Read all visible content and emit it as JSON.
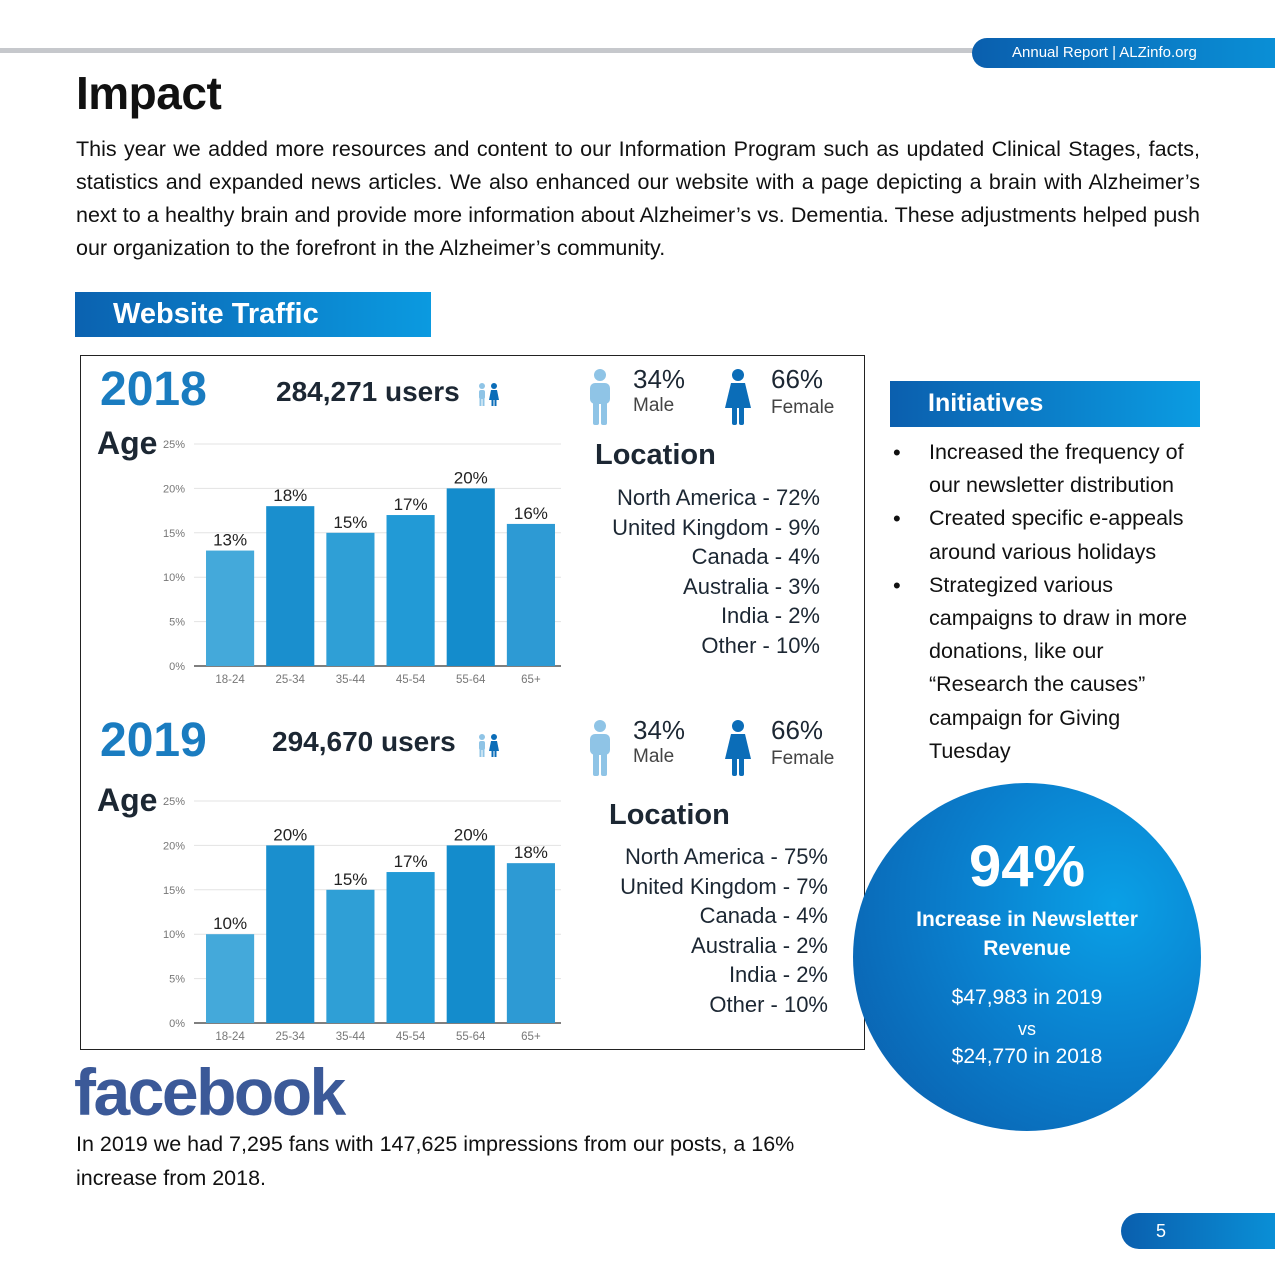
{
  "header": {
    "label": "Annual Report | ALZinfo.org"
  },
  "page_title": "Impact",
  "intro": "This year we added more resources and content to our Information Program such as updated Clinical Stages, facts, statistics and expanded news articles. We also enhanced our website with a page depicting a brain with Alzheimer’s next to a healthy brain and provide more information about Alzheimer’s vs. Dementia. These adjustments helped push our organization to the forefront in the Alzheimer’s community.",
  "website_traffic": {
    "title": "Website Traffic",
    "years": [
      {
        "year": "2018",
        "users": "284,271 users",
        "age_label": "Age",
        "male": {
          "pct": "34%",
          "label": "Male"
        },
        "female": {
          "pct": "66%",
          "label": "Female"
        },
        "location_title": "Location",
        "locations": [
          "North America - 72%",
          "United Kingdom - 9%",
          "Canada - 4%",
          "Australia - 3%",
          "India - 2%",
          "Other - 10%"
        ]
      },
      {
        "year": "2019",
        "users": "294,670 users",
        "age_label": "Age",
        "male": {
          "pct": "34%",
          "label": "Male"
        },
        "female": {
          "pct": "66%",
          "label": "Female"
        },
        "location_title": "Location",
        "locations": [
          "North America - 75%",
          "United Kingdom - 7%",
          "Canada - 4%",
          "Australia - 2%",
          "India - 2%",
          "Other - 10%"
        ]
      }
    ]
  },
  "chart_data": [
    {
      "type": "bar",
      "categories": [
        "18-24",
        "25-34",
        "35-44",
        "45-54",
        "55-64",
        "65+"
      ],
      "values": [
        13,
        18,
        15,
        17,
        20,
        16
      ],
      "data_labels": [
        "13%",
        "18%",
        "15%",
        "17%",
        "20%",
        "16%"
      ],
      "yticks": [
        "0%",
        "5%",
        "10%",
        "15%",
        "20%",
        "25%"
      ],
      "ylim": [
        0,
        25
      ],
      "grid": true,
      "colors": [
        "#44a9da",
        "#1a8fce",
        "#2f9fd6",
        "#229ad6",
        "#148ccc",
        "#2d9ad4"
      ]
    },
    {
      "type": "bar",
      "categories": [
        "18-24",
        "25-34",
        "35-44",
        "45-54",
        "55-64",
        "65+"
      ],
      "values": [
        10,
        20,
        15,
        17,
        20,
        18
      ],
      "data_labels": [
        "10%",
        "20%",
        "15%",
        "17%",
        "20%",
        "18%"
      ],
      "yticks": [
        "0%",
        "5%",
        "10%",
        "15%",
        "20%",
        "25%"
      ],
      "ylim": [
        0,
        25
      ],
      "grid": true,
      "colors": [
        "#44a9da",
        "#1a8fce",
        "#2f9fd6",
        "#229ad6",
        "#148ccc",
        "#2d9ad4"
      ]
    }
  ],
  "initiatives": {
    "title": "Initiatives",
    "items": [
      "Increased the frequency of our newsletter distribution",
      "Created specific e-appeals around various holidays",
      "Strategized various campaigns to draw in more donations, like our “Research the causes” campaign for Giving Tuesday"
    ]
  },
  "newsletter": {
    "big_number": "94%",
    "label": "Increase in Newsletter Revenue",
    "line1": "$47,983 in 2019",
    "vs": "vs",
    "line2": "$24,770 in 2018"
  },
  "facebook": {
    "logo": "facebook",
    "text": "In 2019 we had 7,295 fans with 147,625 impressions from our posts, a 16% increase from 2018."
  },
  "page_number": "5",
  "colors": {
    "brand_blue": "#0b7fcc",
    "facebook_blue": "#3b5998",
    "male_icon": "#8fc4e6",
    "female_icon": "#0b6db8"
  },
  "icons": {
    "users": "people-icon",
    "male": "male-icon",
    "female": "female-icon"
  }
}
